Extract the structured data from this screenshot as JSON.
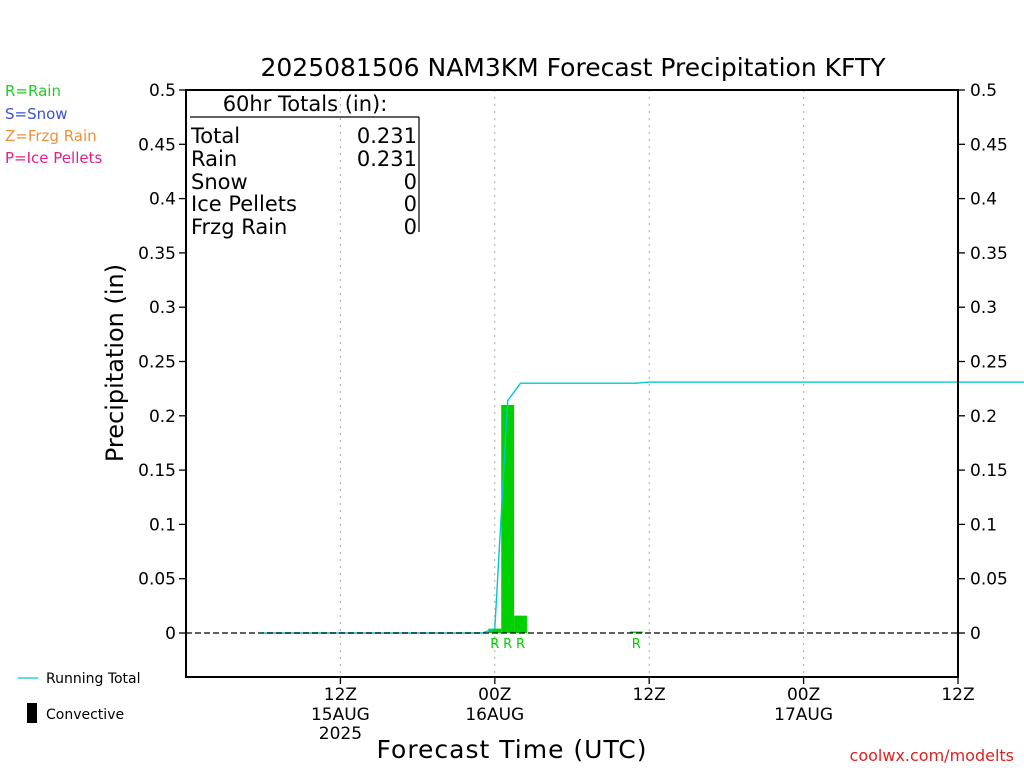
{
  "chart_data": {
    "type": "bar",
    "title": "2025081506 NAM3KM Forecast Precipitation KFTY",
    "xlabel": "Forecast Time (UTC)",
    "ylabel": "Precipitation (in)",
    "ylim": [
      0,
      0.5
    ],
    "y_ticks": [
      "0",
      "0.05",
      "0.1",
      "0.15",
      "0.2",
      "0.25",
      "0.3",
      "0.35",
      "0.4",
      "0.45",
      "0.5"
    ],
    "x_range_hours": [
      -6,
      54
    ],
    "x_ticks": [
      {
        "hour": 6,
        "label": "12Z",
        "sub": "15AUG",
        "sub2": "2025"
      },
      {
        "hour": 18,
        "label": "00Z",
        "sub": "16AUG",
        "sub2": ""
      },
      {
        "hour": 30,
        "label": "12Z",
        "sub": "",
        "sub2": ""
      },
      {
        "hour": 42,
        "label": "00Z",
        "sub": "17AUG",
        "sub2": ""
      },
      {
        "hour": 54,
        "label": "12Z",
        "sub": "",
        "sub2": ""
      }
    ],
    "grid": "vertical dotted",
    "bars": [
      {
        "hour": 18,
        "value": 0.004,
        "type": "R"
      },
      {
        "hour": 19,
        "value": 0.21,
        "type": "R"
      },
      {
        "hour": 20,
        "value": 0.016,
        "type": "R"
      },
      {
        "hour": 29,
        "value": 0.001,
        "type": "R"
      }
    ],
    "running_total": [
      {
        "hour": 0,
        "value": 0
      },
      {
        "hour": 17,
        "value": 0
      },
      {
        "hour": 18,
        "value": 0.004
      },
      {
        "hour": 19,
        "value": 0.214
      },
      {
        "hour": 20,
        "value": 0.23
      },
      {
        "hour": 29,
        "value": 0.23
      },
      {
        "hour": 30,
        "value": 0.231
      },
      {
        "hour": 60,
        "value": 0.231
      }
    ],
    "precip_labels": [
      {
        "hour": 18,
        "text": "R"
      },
      {
        "hour": 19,
        "text": "R"
      },
      {
        "hour": 20,
        "text": "R"
      },
      {
        "hour": 29,
        "text": "R"
      }
    ]
  },
  "totals_box": {
    "heading": "60hr Totals (in):",
    "rows": [
      {
        "label": "Total",
        "value": "0.231"
      },
      {
        "label": "Rain",
        "value": "0.231"
      },
      {
        "label": "Snow",
        "value": "0"
      },
      {
        "label": "Ice Pellets",
        "value": "0"
      },
      {
        "label": "Frzg Rain",
        "value": "0"
      }
    ]
  },
  "type_legend": [
    {
      "text": "R=Rain",
      "color": "#22cc22"
    },
    {
      "text": "S=Snow",
      "color": "#3a4fd8"
    },
    {
      "text": "Z=Frzg Rain",
      "color": "#f0903a"
    },
    {
      "text": "P=Ice Pellets",
      "color": "#e0208a"
    }
  ],
  "series_legend": {
    "running_total": "Running Total",
    "convective": "Convective"
  },
  "credit": "coolwx.com/modelts",
  "colors": {
    "rain": "#00d000",
    "running_total": "#00c8d0",
    "credit": "#e02020",
    "grid": "#aaaaaa"
  }
}
